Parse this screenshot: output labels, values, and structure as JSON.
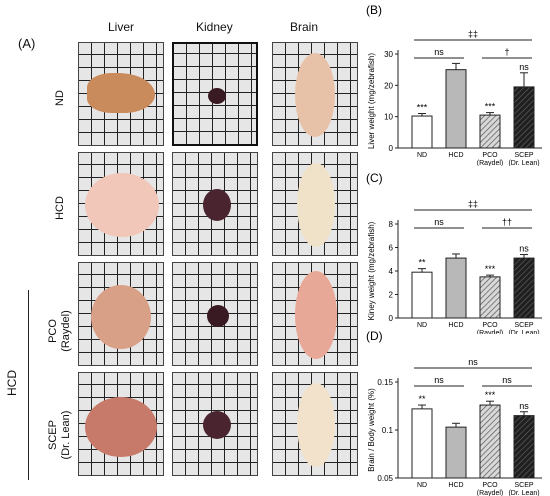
{
  "figure": {
    "panel_a_label": "(A)",
    "columns": [
      "Liver",
      "Kidney",
      "Brain"
    ],
    "rows": [
      "ND",
      "HCD",
      "PCO\n(Raydel)",
      "SCEP\n(Dr. Lean)"
    ],
    "group_label": "HCD"
  },
  "chart_data": [
    {
      "panel": "(B)",
      "type": "bar",
      "categories": [
        "ND",
        "HCD",
        "PCO\n(Raydel)",
        "SCEP\n(Dr. Lean)"
      ],
      "group_label": "HCD",
      "values": [
        10.2,
        25.0,
        10.5,
        19.5
      ],
      "errors": [
        0.8,
        2.0,
        0.8,
        4.5
      ],
      "ylabel": "Liver weight (mg/zebrafish)",
      "ylim": [
        0,
        30
      ],
      "yticks": [
        0,
        10,
        20,
        30
      ],
      "annotations": [
        "***",
        "",
        "***",
        "ns"
      ],
      "comparisons": [
        {
          "text": "‡‡",
          "from": 0,
          "to": 3
        },
        {
          "text": "ns",
          "from": 0,
          "to": 1
        },
        {
          "text": "†",
          "from": 2,
          "to": 3
        }
      ]
    },
    {
      "panel": "(C)",
      "type": "bar",
      "categories": [
        "ND",
        "HCD",
        "PCO\n(Raydel)",
        "SCEP\n(Dr. Lean)"
      ],
      "group_label": "HCD",
      "values": [
        3.9,
        5.1,
        3.5,
        5.1
      ],
      "errors": [
        0.3,
        0.35,
        0.15,
        0.3
      ],
      "ylabel": "Kiney weight (mg/zebrafish)",
      "ylim": [
        0,
        8
      ],
      "yticks": [
        0,
        2,
        4,
        6,
        8
      ],
      "annotations": [
        "**",
        "",
        "***",
        "ns"
      ],
      "comparisons": [
        {
          "text": "‡‡",
          "from": 0,
          "to": 3
        },
        {
          "text": "ns",
          "from": 0,
          "to": 1
        },
        {
          "text": "††",
          "from": 2,
          "to": 3
        }
      ]
    },
    {
      "panel": "(D)",
      "type": "bar",
      "categories": [
        "ND",
        "HCD",
        "PCO\n(Raydel)",
        "SCEP\n(Dr. Lean)"
      ],
      "group_label": "HCD",
      "values": [
        0.122,
        0.103,
        0.126,
        0.115
      ],
      "errors": [
        0.004,
        0.004,
        0.004,
        0.004
      ],
      "ylabel": "Brain / Body weight (%)",
      "ylim": [
        0.05,
        0.15
      ],
      "yticks": [
        0.05,
        0.1,
        0.15
      ],
      "annotations": [
        "**",
        "",
        "***",
        "ns"
      ],
      "comparisons": [
        {
          "text": "ns",
          "from": 0,
          "to": 3
        },
        {
          "text": "ns",
          "from": 0,
          "to": 1
        },
        {
          "text": "ns",
          "from": 2,
          "to": 3
        }
      ]
    }
  ]
}
